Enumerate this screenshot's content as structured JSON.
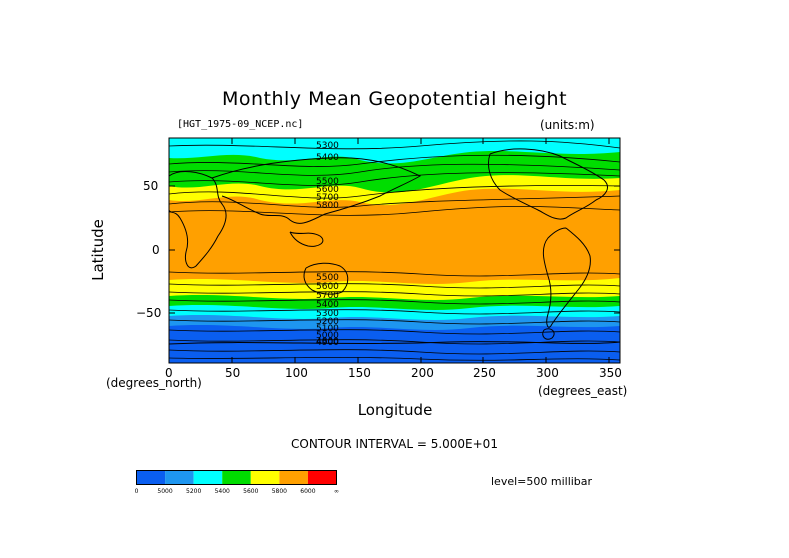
{
  "title": "Monthly Mean Geopotential height",
  "file_label": "[HGT_1975-09_NCEP.nc]",
  "units_label": "(units:m)",
  "y_axis": {
    "label": "Latitude",
    "units": "(degrees_north)",
    "ticks": [
      "50",
      "0",
      "−50"
    ]
  },
  "x_axis": {
    "label": "Longitude",
    "units": "(degrees_east)",
    "ticks": [
      "0",
      "50",
      "100",
      "150",
      "200",
      "250",
      "300",
      "350"
    ]
  },
  "contour_interval": "CONTOUR INTERVAL = 5.000E+01",
  "level": "level=500 millibar",
  "contour_labels": [
    "5300",
    "5400",
    "5500",
    "5600",
    "5700",
    "5800",
    "5500",
    "5600",
    "5700",
    "5400",
    "5300",
    "5200",
    "5100",
    "5000",
    "4900",
    "4800"
  ],
  "colorbar": {
    "colors": [
      "#0a5ef0",
      "#1e96f0",
      "#00ffff",
      "#00dd00",
      "#ffff00",
      "#ffa000",
      "#ff0000"
    ],
    "labels": [
      "0",
      "5000",
      "5200",
      "5400",
      "5600",
      "5800",
      "6000",
      "∞"
    ]
  },
  "map": {
    "domain": "global",
    "lon_range": [
      0,
      360
    ],
    "lat_range": [
      -90,
      90
    ],
    "field": "geopotential height, 500 mb, monthly mean",
    "palette_note": "orange = high (tropics), blue = low (polar)"
  }
}
